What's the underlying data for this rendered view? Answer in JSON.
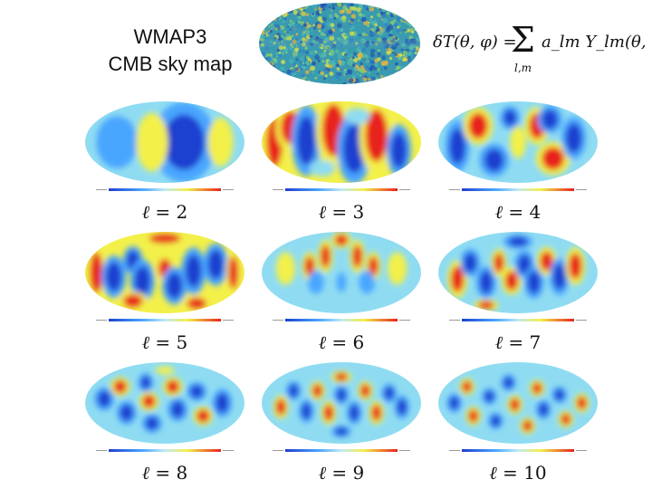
{
  "header": {
    "title_line1": "WMAP3",
    "title_line2": "CMB sky map",
    "formula_lhs": "δT(θ, φ) =",
    "formula_sum_symbol": "Σ",
    "formula_sum_index": "l,m",
    "formula_rhs": "a_lm Y_lm(θ, φ)"
  },
  "multipoles": [
    {
      "ell_symbol": "ℓ",
      "eq": "=",
      "value": "2"
    },
    {
      "ell_symbol": "ℓ",
      "eq": "=",
      "value": "3"
    },
    {
      "ell_symbol": "ℓ",
      "eq": "=",
      "value": "4"
    },
    {
      "ell_symbol": "ℓ",
      "eq": "=",
      "value": "5"
    },
    {
      "ell_symbol": "ℓ",
      "eq": "=",
      "value": "6"
    },
    {
      "ell_symbol": "ℓ",
      "eq": "=",
      "value": "7"
    },
    {
      "ell_symbol": "ℓ",
      "eq": "=",
      "value": "8"
    },
    {
      "ell_symbol": "ℓ",
      "eq": "=",
      "value": "9"
    },
    {
      "ell_symbol": "ℓ",
      "eq": "=",
      "value": "10"
    }
  ],
  "colors": {
    "cold": "#1f3fd0",
    "cool": "#4aa6ff",
    "neutral": "#8fdcf2",
    "warm": "#f3f04a",
    "hot": "#e8221c"
  }
}
